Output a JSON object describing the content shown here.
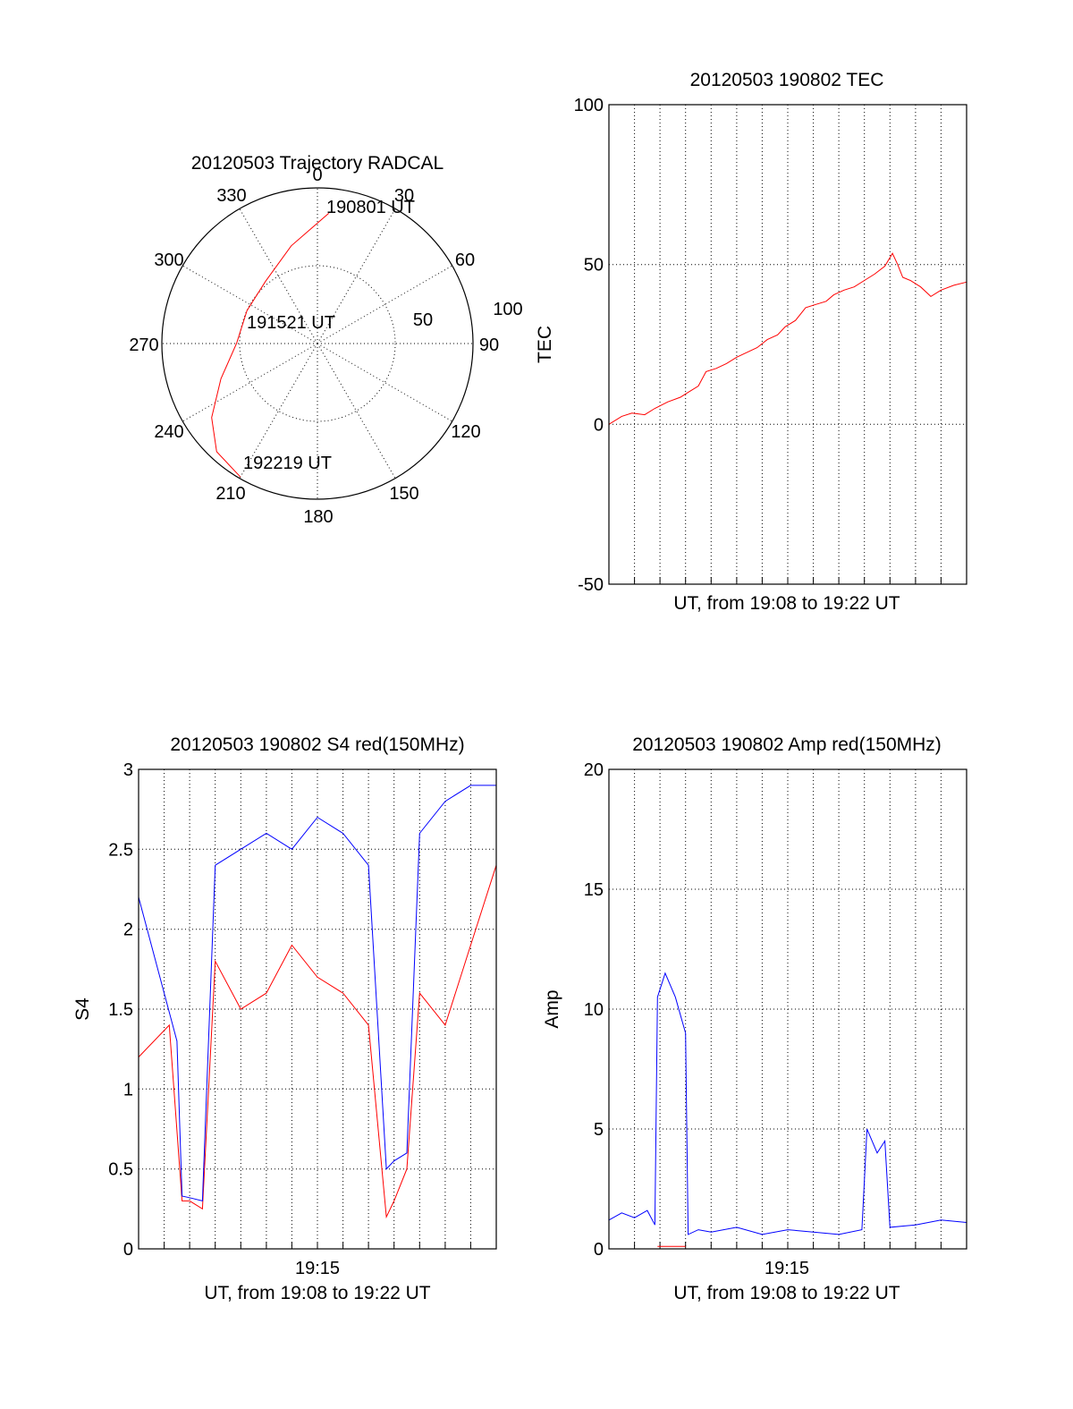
{
  "chart_data": [
    {
      "id": "trajectory",
      "type": "polar",
      "title": "20120503 Trajectory RADCAL",
      "angle_ticks": [
        "0",
        "30",
        "60",
        "90",
        "120",
        "150",
        "180",
        "210",
        "240",
        "270",
        "300",
        "330"
      ],
      "radial_ticks": [
        "50",
        "100"
      ],
      "track_labels": [
        {
          "text": "190801 UT",
          "az": 5,
          "r": 84
        },
        {
          "text": "191521 UT",
          "az": 0,
          "r": 0
        },
        {
          "text": "192219 UT",
          "az": 208,
          "r": 102
        }
      ],
      "track": {
        "color": "#ff0000",
        "points": [
          [
            5,
            84
          ],
          [
            345,
            65
          ],
          [
            320,
            52
          ],
          [
            295,
            50
          ],
          [
            270,
            52
          ],
          [
            250,
            66
          ],
          [
            235,
            83
          ],
          [
            223,
            95
          ],
          [
            210,
            99
          ]
        ]
      }
    },
    {
      "id": "tec",
      "type": "line",
      "title": "20120503 190802 TEC",
      "xlabel": "UT, from 19:08 to 19:22 UT",
      "ylabel": "TEC",
      "ylim": [
        -50,
        100
      ],
      "yticks": [
        "100",
        "50",
        "0",
        "-50"
      ],
      "xtick_labels": [],
      "x_minutes": [
        0,
        14
      ],
      "series": [
        {
          "color": "#ff0000",
          "x": [
            0.0,
            0.5,
            0.9,
            1.4,
            1.8,
            2.3,
            2.8,
            3.1,
            3.5,
            3.8,
            4.2,
            4.6,
            5.0,
            5.4,
            5.8,
            6.2,
            6.6,
            6.9,
            7.3,
            7.7,
            8.1,
            8.5,
            8.8,
            9.2,
            9.6,
            10.0,
            10.4,
            10.8,
            11.1,
            11.3,
            11.5,
            11.8,
            12.2,
            12.6,
            13.0,
            13.5,
            14.0
          ],
          "values": [
            0,
            2.5,
            3.5,
            3.0,
            5.0,
            7.0,
            8.5,
            10.0,
            12.0,
            16.5,
            17.5,
            19.0,
            21.0,
            22.5,
            24.0,
            26.5,
            28.0,
            30.5,
            32.5,
            36.5,
            37.5,
            38.5,
            40.5,
            42.0,
            43.0,
            45.0,
            47.0,
            49.5,
            53.5,
            50.0,
            46.0,
            45.0,
            43.0,
            40.0,
            42.0,
            43.5,
            44.5
          ]
        }
      ]
    },
    {
      "id": "s4",
      "type": "line",
      "title": "20120503 190802 S4 red(150MHz)",
      "xlabel": "UT, from 19:08 to 19:22 UT",
      "ylabel": "S4",
      "ylim": [
        0,
        3
      ],
      "yticks": [
        "3",
        "2.5",
        "2",
        "1.5",
        "1",
        "0.5",
        "0"
      ],
      "xtick_labels": [
        "19:15"
      ],
      "x_minutes": [
        0,
        14
      ],
      "series": [
        {
          "color": "#ff0000",
          "x": [
            0.0,
            1.2,
            1.7,
            2.0,
            2.5,
            3.0,
            4.0,
            5.0,
            6.0,
            7.0,
            8.0,
            9.0,
            9.7,
            10.0,
            10.5,
            11.0,
            12.0,
            13.0,
            14.0
          ],
          "values": [
            1.2,
            1.4,
            0.3,
            0.3,
            0.25,
            1.8,
            1.5,
            1.6,
            1.9,
            1.7,
            1.6,
            1.4,
            0.2,
            0.3,
            0.5,
            1.6,
            1.4,
            1.9,
            2.4
          ]
        },
        {
          "color": "#0000ff",
          "x": [
            0.0,
            0.5,
            1.0,
            1.5,
            1.7,
            2.0,
            2.5,
            3.0,
            4.0,
            5.0,
            6.0,
            7.0,
            8.0,
            9.0,
            9.7,
            10.0,
            10.5,
            11.0,
            12.0,
            13.0,
            14.0
          ],
          "values": [
            2.2,
            1.9,
            1.6,
            1.3,
            0.33,
            0.32,
            0.3,
            2.4,
            2.5,
            2.6,
            2.5,
            2.7,
            2.6,
            2.4,
            0.5,
            0.55,
            0.6,
            2.6,
            2.8,
            2.9,
            2.9
          ]
        }
      ]
    },
    {
      "id": "amp",
      "type": "line",
      "title": "20120503 190802 Amp red(150MHz)",
      "xlabel": "UT, from 19:08 to 19:22 UT",
      "ylabel": "Amp",
      "ylim": [
        0,
        20
      ],
      "yticks": [
        "20",
        "15",
        "10",
        "5",
        "0"
      ],
      "xtick_labels": [
        "19:15"
      ],
      "x_minutes": [
        0,
        14
      ],
      "series": [
        {
          "color": "#0000ff",
          "x": [
            0.0,
            0.5,
            1.0,
            1.5,
            1.8,
            1.9,
            2.2,
            2.6,
            3.0,
            3.1,
            3.5,
            4.0,
            5.0,
            6.0,
            7.0,
            8.0,
            9.0,
            9.9,
            10.1,
            10.5,
            10.8,
            11.0,
            12.0,
            13.0,
            14.0
          ],
          "values": [
            1.2,
            1.5,
            1.3,
            1.6,
            1.0,
            10.5,
            11.5,
            10.5,
            9.0,
            0.6,
            0.8,
            0.7,
            0.9,
            0.6,
            0.8,
            0.7,
            0.6,
            0.8,
            5.0,
            4.0,
            4.5,
            0.9,
            1.0,
            1.2,
            1.1
          ]
        },
        {
          "color": "#ff0000",
          "x": [
            1.9,
            3.0
          ],
          "values": [
            0.1,
            0.1
          ]
        }
      ]
    }
  ]
}
